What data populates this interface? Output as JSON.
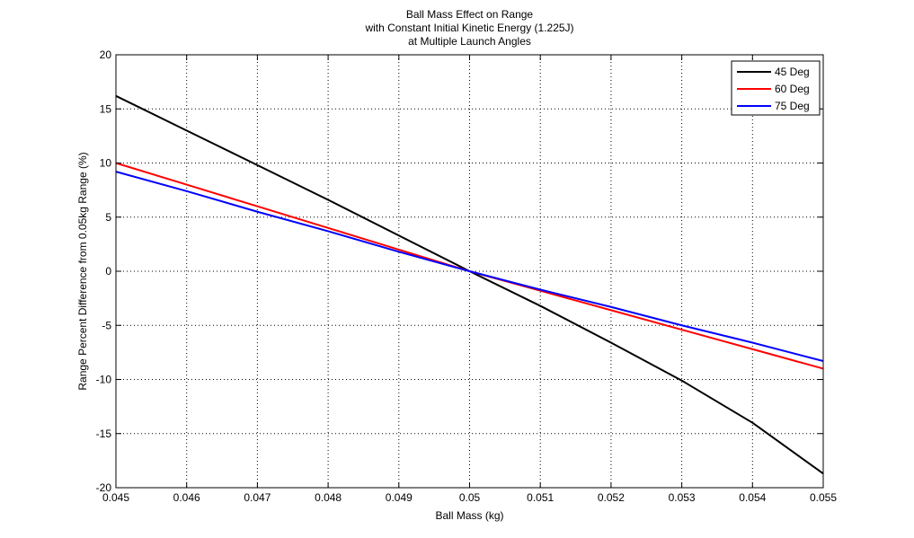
{
  "chart_data": {
    "type": "line",
    "title": [
      "Ball Mass Effect on Range",
      "with Constant Initial Kinetic Energy (1.225J)",
      "at Multiple Launch Angles"
    ],
    "xlabel": "Ball Mass (kg)",
    "ylabel": "Range Percent Difference from 0.05kg Range (%)",
    "xlim": [
      0.045,
      0.055
    ],
    "ylim": [
      -20,
      20
    ],
    "xticks": [
      0.045,
      0.046,
      0.047,
      0.048,
      0.049,
      0.05,
      0.051,
      0.052,
      0.053,
      0.054,
      0.055
    ],
    "xtick_labels": [
      "0.045",
      "0.046",
      "0.047",
      "0.048",
      "0.049",
      "0.05",
      "0.051",
      "0.052",
      "0.053",
      "0.054",
      "0.055"
    ],
    "yticks": [
      -20,
      -15,
      -10,
      -5,
      0,
      5,
      10,
      15,
      20
    ],
    "ytick_labels": [
      "-20",
      "-15",
      "-10",
      "-5",
      "0",
      "5",
      "10",
      "15",
      "20"
    ],
    "grid": true,
    "legend_position": "top-right",
    "series": [
      {
        "name": "45 Deg",
        "color": "#000000",
        "x": [
          0.045,
          0.046,
          0.047,
          0.048,
          0.049,
          0.05,
          0.051,
          0.052,
          0.053,
          0.054,
          0.055
        ],
        "y": [
          16.2,
          13.0,
          9.8,
          6.6,
          3.3,
          0.0,
          -3.2,
          -6.6,
          -10.1,
          -14.0,
          -18.7
        ]
      },
      {
        "name": "60 Deg",
        "color": "#ff0000",
        "x": [
          0.045,
          0.046,
          0.047,
          0.048,
          0.049,
          0.05,
          0.051,
          0.052,
          0.053,
          0.054,
          0.055
        ],
        "y": [
          10.0,
          8.0,
          6.0,
          4.0,
          2.0,
          0.0,
          -1.8,
          -3.6,
          -5.4,
          -7.2,
          -9.0
        ]
      },
      {
        "name": "75 Deg",
        "color": "#0000ff",
        "x": [
          0.045,
          0.046,
          0.047,
          0.048,
          0.049,
          0.05,
          0.051,
          0.052,
          0.053,
          0.054,
          0.055
        ],
        "y": [
          9.2,
          7.4,
          5.5,
          3.7,
          1.8,
          0.0,
          -1.7,
          -3.3,
          -5.0,
          -6.6,
          -8.3
        ]
      }
    ]
  }
}
